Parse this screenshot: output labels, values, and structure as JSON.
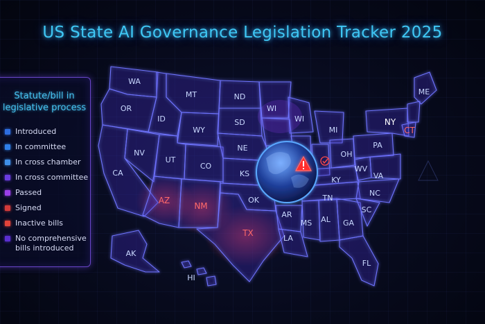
{
  "title": "US State AI Governance Legislation Tracker 2025",
  "legend": {
    "title_line1": "Statute/bill in",
    "title_line2": "legislative process",
    "items": [
      {
        "label": "Introduced",
        "color": "#2d6de0"
      },
      {
        "label": "In committee",
        "color": "#2f7fe8"
      },
      {
        "label": "In cross chamber",
        "color": "#3f8fea"
      },
      {
        "label": "In cross committee",
        "color": "#6a3ce0"
      },
      {
        "label": "Passed",
        "color": "#9a3fe8"
      },
      {
        "label": "Signed",
        "color": "#d23a3a"
      },
      {
        "label": "Inactive bills",
        "color": "#e0433a"
      },
      {
        "label": "No comprehensive",
        "label2": "bills introduced",
        "color": "#5a2fd0"
      }
    ]
  },
  "states": [
    {
      "abbr": "WA",
      "status": "In cross committee"
    },
    {
      "abbr": "OR",
      "status": "Introduced"
    },
    {
      "abbr": "CA",
      "status": "Introduced"
    },
    {
      "abbr": "NV",
      "status": "Introduced"
    },
    {
      "abbr": "ID",
      "status": "Introduced"
    },
    {
      "abbr": "MT",
      "status": "In cross committee"
    },
    {
      "abbr": "WY",
      "status": "In cross committee"
    },
    {
      "abbr": "UT",
      "status": "In cross committee"
    },
    {
      "abbr": "CO",
      "status": "In cross committee"
    },
    {
      "abbr": "AZ",
      "status": "Signed"
    },
    {
      "abbr": "NM",
      "status": "Signed"
    },
    {
      "abbr": "ND",
      "status": "In cross committee"
    },
    {
      "abbr": "SD",
      "status": "In cross committee"
    },
    {
      "abbr": "NE",
      "status": "In cross committee"
    },
    {
      "abbr": "KS",
      "status": "In cross committee"
    },
    {
      "abbr": "OK",
      "status": "Inactive bills"
    },
    {
      "abbr": "TX",
      "status": "Inactive bills"
    },
    {
      "abbr": "WI",
      "status": "Passed"
    },
    {
      "abbr": "MI",
      "status": "Passed"
    },
    {
      "abbr": "OH",
      "status": "In cross committee"
    },
    {
      "abbr": "PA",
      "status": "In cross committee"
    },
    {
      "abbr": "NY",
      "status": "In cross committee"
    },
    {
      "abbr": "ME",
      "status": "Passed"
    },
    {
      "abbr": "CT",
      "status": "Inactive bills"
    },
    {
      "abbr": "WV",
      "status": "In cross committee"
    },
    {
      "abbr": "VA",
      "status": "In cross committee"
    },
    {
      "abbr": "KY",
      "status": "In cross committee"
    },
    {
      "abbr": "TN",
      "status": "In cross committee"
    },
    {
      "abbr": "NC",
      "status": "In cross committee"
    },
    {
      "abbr": "SC",
      "status": "In cross committee"
    },
    {
      "abbr": "AR",
      "status": "In cross committee"
    },
    {
      "abbr": "LA",
      "status": "In cross committee"
    },
    {
      "abbr": "MS",
      "status": "In cross committee"
    },
    {
      "abbr": "AL",
      "status": "In cross committee"
    },
    {
      "abbr": "GA",
      "status": "In cross committee"
    },
    {
      "abbr": "FL",
      "status": "In cross committee"
    },
    {
      "abbr": "AK",
      "status": "In cross committee"
    },
    {
      "abbr": "HI",
      "status": "In cross committee"
    }
  ],
  "icons": [
    "globe-icon",
    "warning-icon",
    "checkmark-icon"
  ]
}
